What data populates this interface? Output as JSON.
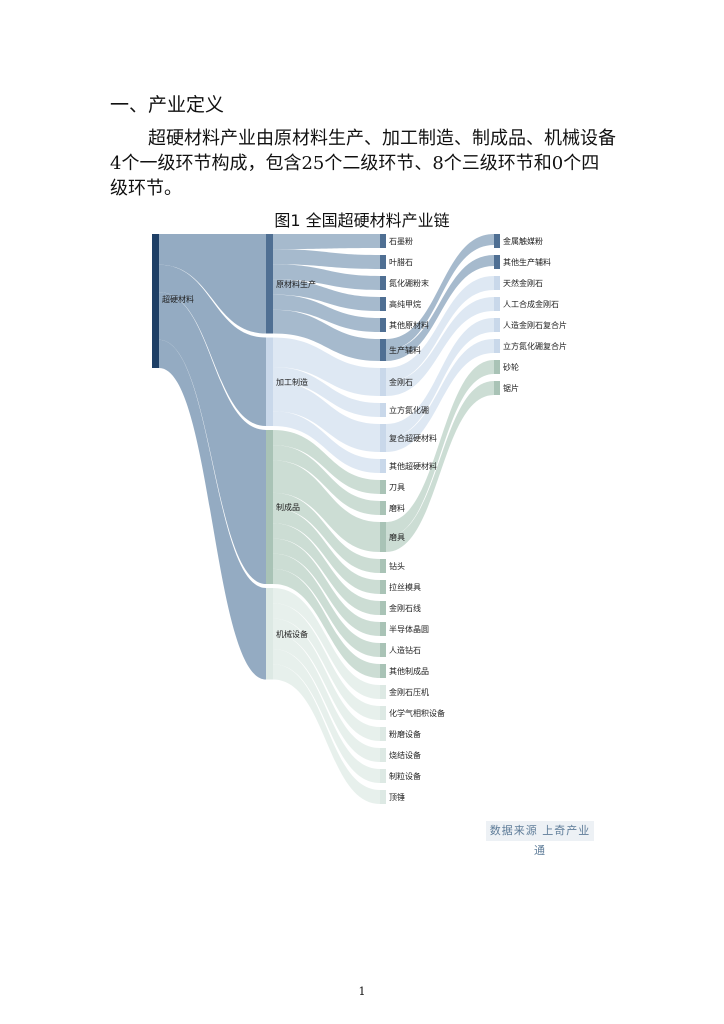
{
  "doc": {
    "heading": "一、产业定义",
    "paragraph": "超硬材料产业由原材料生产、加工制造、制成品、机械设备4个一级环节构成，包含25个二级环节、8个三级环节和0个四级环节。",
    "figure_title": "图1 全国超硬材料产业链",
    "source": "数据来源 上奇产业通",
    "page_number": "1"
  },
  "chart_data": {
    "type": "sankey",
    "levels": [
      [
        "超硬材料"
      ],
      [
        "原材料生产",
        "加工制造",
        "制成品",
        "机械设备"
      ],
      [
        "石墨粉",
        "叶腊石",
        "氮化硼粉末",
        "高纯甲烷",
        "其他原材料",
        "生产辅料",
        "金刚石",
        "立方氮化硼",
        "复合超硬材料",
        "其他超硬材料",
        "刀具",
        "磨料",
        "磨具",
        "钻头",
        "拉丝模具",
        "金刚石线",
        "半导体晶圆",
        "人造钻石",
        "其他制成品",
        "金刚石压机",
        "化学气相积设备",
        "粉磨设备",
        "烧结设备",
        "制粒设备",
        "顶锤"
      ],
      [
        "金属触媒粉",
        "其他生产辅料",
        "天然金刚石",
        "人工合成金刚石",
        "人造金刚石复合片",
        "立方氮化硼复合片",
        "砂轮",
        "锯片"
      ]
    ],
    "links": [
      {
        "source": "超硬材料",
        "target": "原材料生产"
      },
      {
        "source": "超硬材料",
        "target": "加工制造"
      },
      {
        "source": "超硬材料",
        "target": "制成品"
      },
      {
        "source": "超硬材料",
        "target": "机械设备"
      },
      {
        "source": "原材料生产",
        "target": "石墨粉"
      },
      {
        "source": "原材料生产",
        "target": "叶腊石"
      },
      {
        "source": "原材料生产",
        "target": "氮化硼粉末"
      },
      {
        "source": "原材料生产",
        "target": "高纯甲烷"
      },
      {
        "source": "原材料生产",
        "target": "其他原材料"
      },
      {
        "source": "原材料生产",
        "target": "生产辅料"
      },
      {
        "source": "加工制造",
        "target": "金刚石"
      },
      {
        "source": "加工制造",
        "target": "立方氮化硼"
      },
      {
        "source": "加工制造",
        "target": "复合超硬材料"
      },
      {
        "source": "加工制造",
        "target": "其他超硬材料"
      },
      {
        "source": "制成品",
        "target": "刀具"
      },
      {
        "source": "制成品",
        "target": "磨料"
      },
      {
        "source": "制成品",
        "target": "磨具"
      },
      {
        "source": "制成品",
        "target": "钻头"
      },
      {
        "source": "制成品",
        "target": "拉丝模具"
      },
      {
        "source": "制成品",
        "target": "金刚石线"
      },
      {
        "source": "制成品",
        "target": "半导体晶圆"
      },
      {
        "source": "制成品",
        "target": "人造钻石"
      },
      {
        "source": "制成品",
        "target": "其他制成品"
      },
      {
        "source": "机械设备",
        "target": "金刚石压机"
      },
      {
        "source": "机械设备",
        "target": "化学气相积设备"
      },
      {
        "source": "机械设备",
        "target": "粉磨设备"
      },
      {
        "source": "机械设备",
        "target": "烧结设备"
      },
      {
        "source": "机械设备",
        "target": "制粒设备"
      },
      {
        "source": "机械设备",
        "target": "顶锤"
      },
      {
        "source": "生产辅料",
        "target": "金属触媒粉"
      },
      {
        "source": "生产辅料",
        "target": "其他生产辅料"
      },
      {
        "source": "金刚石",
        "target": "天然金刚石"
      },
      {
        "source": "金刚石",
        "target": "人工合成金刚石"
      },
      {
        "source": "复合超硬材料",
        "target": "人造金刚石复合片"
      },
      {
        "source": "复合超硬材料",
        "target": "立方氮化硼复合片"
      },
      {
        "source": "磨具",
        "target": "砂轮"
      },
      {
        "source": "磨具",
        "target": "锯片"
      }
    ]
  }
}
